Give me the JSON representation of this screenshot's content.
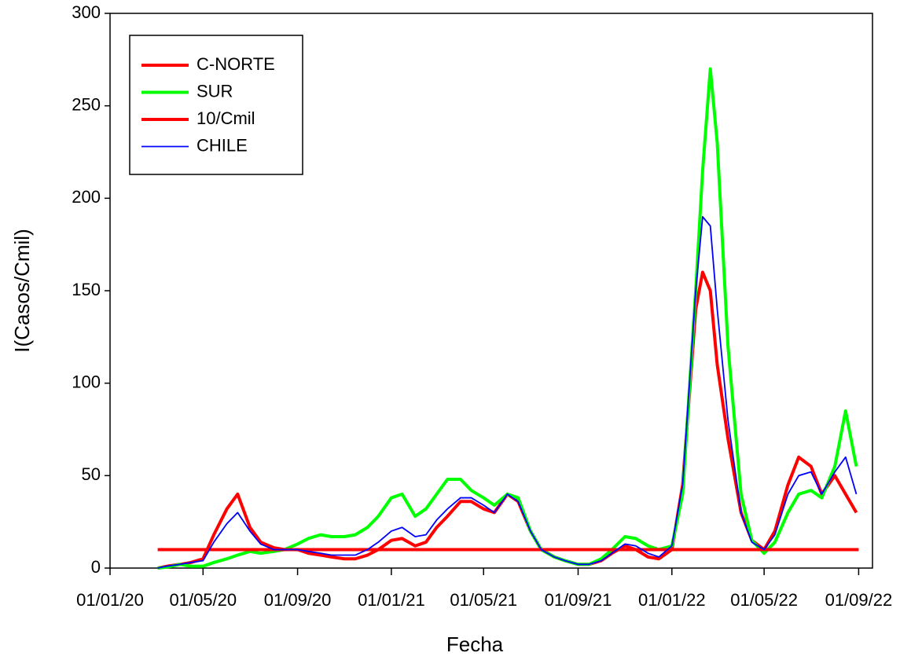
{
  "chart_data": {
    "type": "line",
    "xlabel": "Fecha",
    "ylabel": "I(Casos/Cmil)",
    "xlim": [
      "2020-01-01",
      "2022-09-19"
    ],
    "xticks": [
      {
        "value": "2020-01-01",
        "label": "01/01/20"
      },
      {
        "value": "2020-05-01",
        "label": "01/05/20"
      },
      {
        "value": "2020-09-01",
        "label": "01/09/20"
      },
      {
        "value": "2021-01-01",
        "label": "01/01/21"
      },
      {
        "value": "2021-05-01",
        "label": "01/05/21"
      },
      {
        "value": "2021-09-01",
        "label": "01/09/21"
      },
      {
        "value": "2022-01-01",
        "label": "01/01/22"
      },
      {
        "value": "2022-05-01",
        "label": "01/05/22"
      },
      {
        "value": "2022-09-01",
        "label": "01/09/22"
      }
    ],
    "ylim": [
      0,
      300
    ],
    "yticks": [
      0,
      50,
      100,
      150,
      200,
      250,
      300
    ],
    "legend": "upper left",
    "series": [
      {
        "name": "C-NORTE",
        "color": "#ff0000",
        "width": 4,
        "x": [
          "2020-03-03",
          "2020-03-15",
          "2020-04-01",
          "2020-04-15",
          "2020-05-01",
          "2020-05-15",
          "2020-06-01",
          "2020-06-15",
          "2020-07-01",
          "2020-07-15",
          "2020-08-01",
          "2020-08-15",
          "2020-09-01",
          "2020-09-15",
          "2020-10-01",
          "2020-10-15",
          "2020-11-01",
          "2020-11-15",
          "2020-12-01",
          "2020-12-15",
          "2021-01-01",
          "2021-01-15",
          "2021-02-01",
          "2021-02-15",
          "2021-03-01",
          "2021-03-15",
          "2021-04-01",
          "2021-04-15",
          "2021-05-01",
          "2021-05-15",
          "2021-06-01",
          "2021-06-15",
          "2021-07-01",
          "2021-07-15",
          "2021-08-01",
          "2021-08-15",
          "2021-09-01",
          "2021-09-15",
          "2021-10-01",
          "2021-10-15",
          "2021-11-01",
          "2021-11-15",
          "2021-12-01",
          "2021-12-15",
          "2022-01-01",
          "2022-01-15",
          "2022-02-01",
          "2022-02-10",
          "2022-02-20",
          "2022-03-01",
          "2022-03-15",
          "2022-04-01",
          "2022-04-15",
          "2022-05-01",
          "2022-05-15",
          "2022-06-01",
          "2022-06-15",
          "2022-07-01",
          "2022-07-15",
          "2022-08-01",
          "2022-08-15",
          "2022-08-29"
        ],
        "values": [
          0,
          1,
          2,
          3,
          5,
          18,
          32,
          40,
          22,
          14,
          11,
          10,
          10,
          8,
          7,
          6,
          5,
          5,
          7,
          10,
          15,
          16,
          12,
          14,
          22,
          28,
          36,
          36,
          32,
          30,
          40,
          36,
          20,
          10,
          6,
          4,
          2,
          2,
          4,
          8,
          12,
          10,
          6,
          5,
          10,
          45,
          140,
          160,
          150,
          110,
          70,
          30,
          15,
          10,
          20,
          45,
          60,
          55,
          40,
          50,
          40,
          30
        ]
      },
      {
        "name": "SUR",
        "color": "#00ff00",
        "width": 4,
        "x": [
          "2020-03-03",
          "2020-03-15",
          "2020-04-01",
          "2020-04-15",
          "2020-05-01",
          "2020-05-15",
          "2020-06-01",
          "2020-06-15",
          "2020-07-01",
          "2020-07-15",
          "2020-08-01",
          "2020-08-15",
          "2020-09-01",
          "2020-09-15",
          "2020-10-01",
          "2020-10-15",
          "2020-11-01",
          "2020-11-15",
          "2020-12-01",
          "2020-12-15",
          "2021-01-01",
          "2021-01-15",
          "2021-02-01",
          "2021-02-15",
          "2021-03-01",
          "2021-03-15",
          "2021-04-01",
          "2021-04-15",
          "2021-05-01",
          "2021-05-15",
          "2021-06-01",
          "2021-06-15",
          "2021-07-01",
          "2021-07-15",
          "2021-08-01",
          "2021-08-15",
          "2021-09-01",
          "2021-09-15",
          "2021-10-01",
          "2021-10-15",
          "2021-11-01",
          "2021-11-15",
          "2021-12-01",
          "2021-12-15",
          "2022-01-01",
          "2022-01-15",
          "2022-02-01",
          "2022-02-10",
          "2022-02-20",
          "2022-03-01",
          "2022-03-15",
          "2022-04-01",
          "2022-04-15",
          "2022-05-01",
          "2022-05-15",
          "2022-06-01",
          "2022-06-15",
          "2022-07-01",
          "2022-07-15",
          "2022-08-01",
          "2022-08-15",
          "2022-08-29"
        ],
        "values": [
          0,
          0.5,
          2,
          1,
          1,
          3,
          5,
          7,
          9,
          8,
          9,
          10,
          13,
          16,
          18,
          17,
          17,
          18,
          22,
          28,
          38,
          40,
          28,
          32,
          40,
          48,
          48,
          42,
          38,
          34,
          40,
          38,
          20,
          10,
          6,
          4,
          2,
          2,
          5,
          10,
          17,
          16,
          12,
          10,
          12,
          40,
          150,
          215,
          270,
          230,
          120,
          40,
          15,
          8,
          14,
          30,
          40,
          42,
          38,
          55,
          85,
          55
        ]
      },
      {
        "name": "10/Cmil",
        "color": "#ff0000",
        "width": 4,
        "x": [
          "2020-03-03",
          "2022-09-01"
        ],
        "values": [
          10,
          10
        ]
      },
      {
        "name": "CHILE",
        "color": "#0000ff",
        "width": 1.8,
        "x": [
          "2020-03-03",
          "2020-03-15",
          "2020-04-01",
          "2020-04-15",
          "2020-05-01",
          "2020-05-15",
          "2020-06-01",
          "2020-06-15",
          "2020-07-01",
          "2020-07-15",
          "2020-08-01",
          "2020-08-15",
          "2020-09-01",
          "2020-09-15",
          "2020-10-01",
          "2020-10-15",
          "2020-11-01",
          "2020-11-15",
          "2020-12-01",
          "2020-12-15",
          "2021-01-01",
          "2021-01-15",
          "2021-02-01",
          "2021-02-15",
          "2021-03-01",
          "2021-03-15",
          "2021-04-01",
          "2021-04-15",
          "2021-05-01",
          "2021-05-15",
          "2021-06-01",
          "2021-06-15",
          "2021-07-01",
          "2021-07-15",
          "2021-08-01",
          "2021-08-15",
          "2021-09-01",
          "2021-09-15",
          "2021-10-01",
          "2021-10-15",
          "2021-11-01",
          "2021-11-15",
          "2021-12-01",
          "2021-12-15",
          "2022-01-01",
          "2022-01-15",
          "2022-02-01",
          "2022-02-10",
          "2022-02-20",
          "2022-03-01",
          "2022-03-15",
          "2022-04-01",
          "2022-04-15",
          "2022-05-01",
          "2022-05-15",
          "2022-06-01",
          "2022-06-15",
          "2022-07-01",
          "2022-07-15",
          "2022-08-01",
          "2022-08-15",
          "2022-08-29"
        ],
        "values": [
          0,
          1,
          2,
          3,
          4,
          14,
          24,
          30,
          20,
          13,
          10,
          10,
          10,
          9,
          8,
          7,
          7,
          7,
          10,
          14,
          20,
          22,
          17,
          18,
          26,
          32,
          38,
          38,
          34,
          30,
          40,
          36,
          20,
          10,
          6,
          4,
          2,
          2,
          4,
          8,
          13,
          12,
          8,
          6,
          12,
          45,
          150,
          190,
          185,
          140,
          80,
          30,
          14,
          10,
          18,
          40,
          50,
          52,
          40,
          52,
          60,
          40
        ]
      }
    ]
  }
}
